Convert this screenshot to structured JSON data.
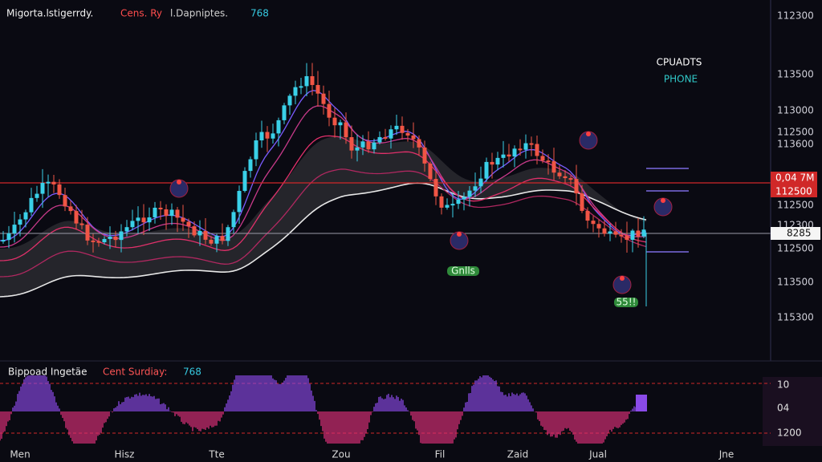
{
  "header": {
    "part1": "Migorta.lstigerrdy.",
    "part2": "Cens. Ry",
    "part3": "l.Dapniptes.",
    "part4": "768"
  },
  "overlay": {
    "line1": "CPUADTS",
    "line2": "PHONE"
  },
  "price_axis": [
    "112300",
    "113500",
    "113000",
    "112500",
    "113600",
    "112500",
    "112500",
    "112300",
    "112500",
    "113500",
    "115300"
  ],
  "price_badge": {
    "top": "0,04  7M",
    "bottom": "112500"
  },
  "current_badge": "8285",
  "markers": [
    "Gnlls",
    "55!!"
  ],
  "indicator": {
    "title1": "Bippoad Ingetäe",
    "title2": "Cent Surdiay:",
    "title3": "768",
    "axis": [
      "10",
      "04",
      "1200"
    ]
  },
  "time_axis": [
    "Men",
    "Hisz",
    "Tte",
    "Zou",
    "Fil",
    "Zaid",
    "Jual",
    "Jne"
  ]
}
